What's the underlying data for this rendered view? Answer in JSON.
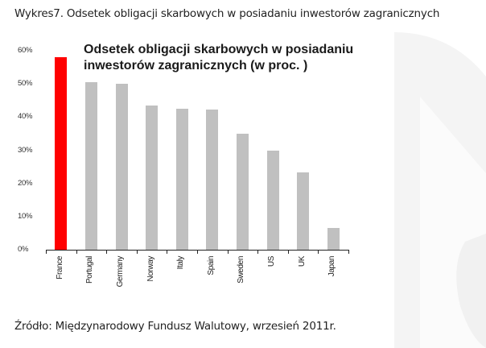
{
  "page": {
    "title": "Wykres7. Odsetek obligacji skarbowych w posiadaniu inwestorów zagranicznych",
    "source": "Źródło: Międzynarodowy Fundusz Walutowy, wrzesień 2011r."
  },
  "chart": {
    "title_line1": "Odsetek obligacji skarbowych w posiadaniu",
    "title_line2": "inwestorów zagranicznych (w proc. )",
    "y_ticks": [
      "60%",
      "50%",
      "40%",
      "30%",
      "20%",
      "10%",
      "0%"
    ],
    "categories": [
      "France",
      "Portugal",
      "Germany",
      "Norway",
      "Italy",
      "Spain",
      "Sweden",
      "US",
      "UK",
      "Japan"
    ]
  },
  "colors": {
    "highlight": "#ff0000",
    "bar": "#c0c0c0",
    "axis": "#222222"
  },
  "chart_data": {
    "type": "bar",
    "title": "Odsetek obligacji skarbowych w posiadaniu inwestorów zagranicznych (w proc. )",
    "categories": [
      "France",
      "Portugal",
      "Germany",
      "Norway",
      "Italy",
      "Spain",
      "Sweden",
      "US",
      "UK",
      "Japan"
    ],
    "values": [
      58,
      50.5,
      50,
      43.5,
      42.5,
      42.3,
      35,
      30,
      23.3,
      6.5
    ],
    "highlighted": [
      "France"
    ],
    "xlabel": "",
    "ylabel": "",
    "ylim": [
      0,
      60
    ],
    "y_ticks": [
      0,
      10,
      20,
      30,
      40,
      50,
      60
    ],
    "y_tick_format": "percent",
    "grid": false,
    "legend": "none",
    "x_label_rotation": -90
  }
}
